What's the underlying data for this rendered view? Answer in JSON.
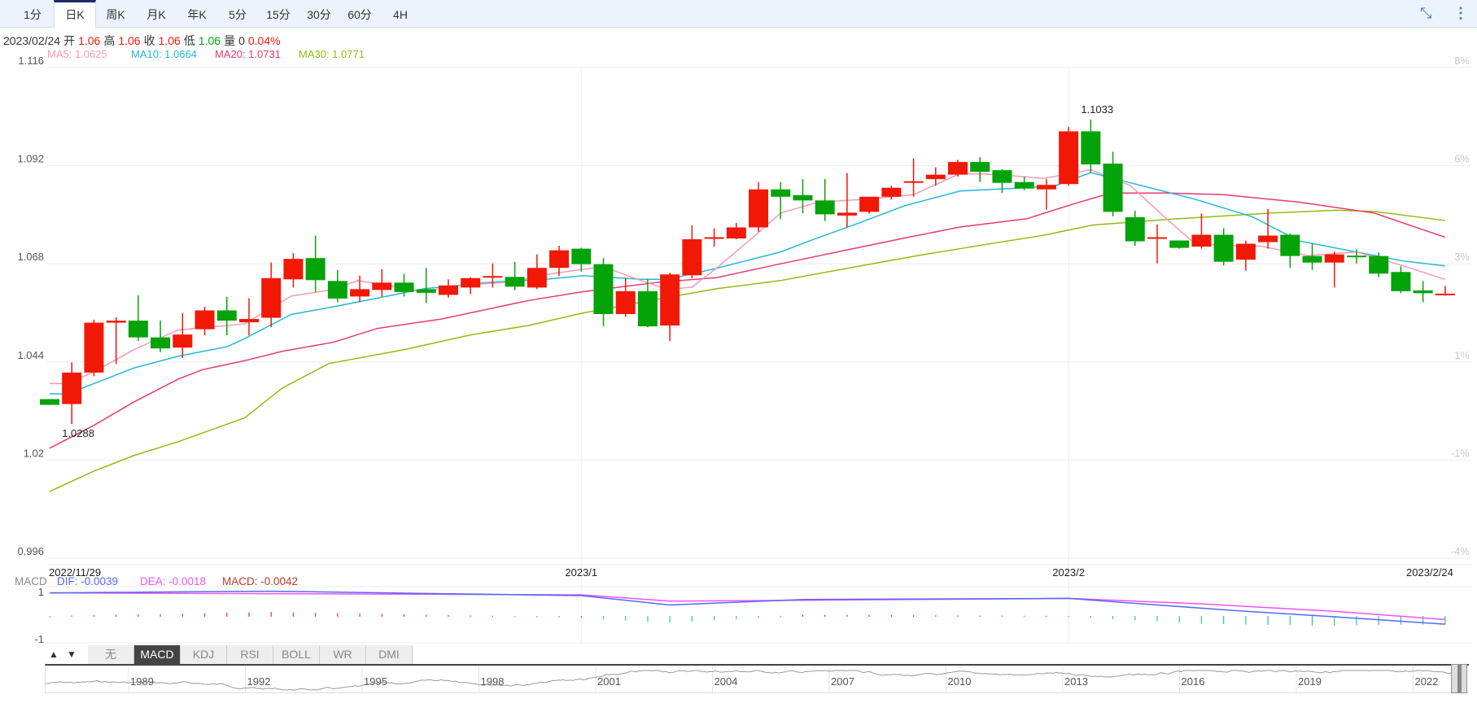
{
  "toolbar": {
    "tabs": [
      "1分",
      "日K",
      "周K",
      "月K",
      "年K",
      "5分",
      "15分",
      "30分",
      "60分",
      "4H"
    ],
    "active": 1,
    "icons": [
      "compress-icon",
      "more-vertical-icon"
    ]
  },
  "info": {
    "date": "2023/02/24",
    "open_label": "开",
    "open": "1.06",
    "high_label": "高",
    "high": "1.06",
    "close_label": "收",
    "close": "1.06",
    "low_label": "低",
    "low": "1.06",
    "vol_label": "量",
    "vol": "0",
    "change": "0.04%"
  },
  "ma_legend": [
    {
      "text": "MA5: 1.0625",
      "color": "#f59ab5"
    },
    {
      "text": "MA10: 1.0664",
      "color": "#23b8d9"
    },
    {
      "text": "MA20: 1.0731",
      "color": "#e83a6e"
    },
    {
      "text": "MA30: 1.0771",
      "color": "#93bb10"
    }
  ],
  "colors": {
    "up": "#f21806",
    "down": "#04a30a",
    "ma5": "#f59ab5",
    "ma10": "#23b8d9",
    "ma20": "#e83a6e",
    "ma30": "#93bb10",
    "dif": "#5468ff",
    "dea": "#ee55ee"
  },
  "chart_data": {
    "type": "candlestick",
    "ylim": [
      0.996,
      1.116
    ],
    "yticks": [
      "1.116",
      "1.092",
      "1.068",
      "1.044",
      "1.02",
      "0.996"
    ],
    "yticks_right": [
      "8%",
      "6%",
      "3%",
      "1%",
      "-1%",
      "-4%"
    ],
    "xlabels": [
      {
        "i": 0,
        "text": "2022/11/29"
      },
      {
        "i": 24,
        "text": "2023/1"
      },
      {
        "i": 46,
        "text": "2023/2"
      },
      {
        "i": 63,
        "text": "2023/2/24"
      }
    ],
    "annotations": [
      {
        "i": 47,
        "text": "1.1033",
        "pos": "above"
      },
      {
        "i": 1,
        "text": "1.0288",
        "pos": "below"
      }
    ],
    "ohlc": [
      [
        1.0349,
        1.0349,
        1.0335,
        1.0335
      ],
      [
        1.0337,
        1.0439,
        1.0288,
        1.0414
      ],
      [
        1.0414,
        1.0543,
        1.0405,
        1.0536
      ],
      [
        1.0536,
        1.0549,
        1.0435,
        1.0541
      ],
      [
        1.0541,
        1.0603,
        1.0491,
        1.05
      ],
      [
        1.05,
        1.0541,
        1.0464,
        1.0473
      ],
      [
        1.0475,
        1.0559,
        1.045,
        1.0507
      ],
      [
        1.052,
        1.0575,
        1.0505,
        1.0566
      ],
      [
        1.0566,
        1.0599,
        1.0505,
        1.0541
      ],
      [
        1.0537,
        1.0596,
        1.0505,
        1.0545
      ],
      [
        1.0548,
        1.0683,
        1.0525,
        1.0645
      ],
      [
        1.0642,
        1.0706,
        1.0622,
        1.0692
      ],
      [
        1.0694,
        1.0749,
        1.0611,
        1.064
      ],
      [
        1.0638,
        1.0665,
        1.0586,
        1.0595
      ],
      [
        1.06,
        1.0651,
        1.0586,
        1.0618
      ],
      [
        1.0616,
        1.0667,
        1.06,
        1.0634
      ],
      [
        1.0634,
        1.0656,
        1.06,
        1.0611
      ],
      [
        1.0618,
        1.067,
        1.0584,
        1.0609
      ],
      [
        1.0604,
        1.0642,
        1.0597,
        1.0627
      ],
      [
        1.0622,
        1.0647,
        1.0606,
        1.0645
      ],
      [
        1.0648,
        1.0681,
        1.0622,
        1.065
      ],
      [
        1.0648,
        1.0685,
        1.0615,
        1.0624
      ],
      [
        1.0622,
        1.0703,
        1.0618,
        1.067
      ],
      [
        1.067,
        1.0724,
        1.065,
        1.0713
      ],
      [
        1.0717,
        1.0719,
        1.0661,
        1.0679
      ],
      [
        1.0679,
        1.0694,
        1.0527,
        1.0557
      ],
      [
        1.0557,
        1.0645,
        1.055,
        1.0613
      ],
      [
        1.0613,
        1.0642,
        1.0525,
        1.0527
      ],
      [
        1.0529,
        1.0658,
        1.0491,
        1.0654
      ],
      [
        1.0652,
        1.0774,
        1.0645,
        1.074
      ],
      [
        1.0742,
        1.0767,
        1.0722,
        1.0745
      ],
      [
        1.0742,
        1.078,
        1.074,
        1.0769
      ],
      [
        1.0769,
        1.088,
        1.0758,
        1.0862
      ],
      [
        1.0862,
        1.088,
        1.0789,
        1.0844
      ],
      [
        1.0848,
        1.0887,
        1.0803,
        1.0835
      ],
      [
        1.0835,
        1.0887,
        1.0785,
        1.0801
      ],
      [
        1.0798,
        1.0902,
        1.0769,
        1.0805
      ],
      [
        1.0807,
        1.0844,
        1.0803,
        1.0844
      ],
      [
        1.0844,
        1.0871,
        1.0837,
        1.0866
      ],
      [
        1.088,
        1.0938,
        1.0844,
        1.0882
      ],
      [
        1.0887,
        1.0916,
        1.0871,
        1.0898
      ],
      [
        1.0898,
        1.0934,
        1.0893,
        1.0929
      ],
      [
        1.0929,
        1.0941,
        1.088,
        1.0905
      ],
      [
        1.0909,
        1.0911,
        1.0853,
        1.0878
      ],
      [
        1.088,
        1.0893,
        1.086,
        1.0864
      ],
      [
        1.0862,
        1.0887,
        1.0812,
        1.0873
      ],
      [
        1.0875,
        1.1015,
        1.0871,
        1.1004
      ],
      [
        1.1004,
        1.1033,
        1.0902,
        1.0923
      ],
      [
        1.0925,
        1.0954,
        1.0796,
        1.0807
      ],
      [
        1.0794,
        1.081,
        1.0724,
        1.0735
      ],
      [
        1.0742,
        1.0776,
        1.0681,
        1.0745
      ],
      [
        1.0737,
        1.0737,
        1.0717,
        1.0719
      ],
      [
        1.0722,
        1.0803,
        1.0717,
        1.0751
      ],
      [
        1.0751,
        1.0767,
        1.0676,
        1.0685
      ],
      [
        1.069,
        1.0737,
        1.0663,
        1.0729
      ],
      [
        1.0733,
        1.0814,
        1.0717,
        1.0749
      ],
      [
        1.0751,
        1.0754,
        1.067,
        1.0699
      ],
      [
        1.0699,
        1.0731,
        1.0665,
        1.0683
      ],
      [
        1.0683,
        1.071,
        1.0622,
        1.0703
      ],
      [
        1.07,
        1.0715,
        1.0681,
        1.0697
      ],
      [
        1.0699,
        1.0708,
        1.0647,
        1.0656
      ],
      [
        1.066,
        1.0674,
        1.0608,
        1.0613
      ],
      [
        1.0615,
        1.0638,
        1.0586,
        1.0608
      ],
      [
        1.0605,
        1.0626,
        1.0602,
        1.0607
      ]
    ],
    "ma": {
      "ma5": [
        [
          0,
          1.0387
        ],
        [
          0.8,
          1.0387
        ],
        [
          2,
          1.0416
        ],
        [
          3.8,
          1.047
        ],
        [
          5.8,
          1.0518
        ],
        [
          8.8,
          1.0533
        ],
        [
          10.9,
          1.0601
        ],
        [
          12.8,
          1.0617
        ],
        [
          13.9,
          1.0639
        ],
        [
          15.2,
          1.0628
        ],
        [
          16.9,
          1.0612
        ],
        [
          18.6,
          1.0628
        ],
        [
          20.7,
          1.0635
        ],
        [
          22.8,
          1.0657
        ],
        [
          25,
          1.0673
        ],
        [
          26.7,
          1.0639
        ],
        [
          27.9,
          1.0617
        ],
        [
          29,
          1.0623
        ],
        [
          30.1,
          1.0669
        ],
        [
          31.8,
          1.0747
        ],
        [
          33,
          1.0804
        ],
        [
          34.7,
          1.0831
        ],
        [
          36.9,
          1.0838
        ],
        [
          39,
          1.0849
        ],
        [
          41.1,
          1.0901
        ],
        [
          42.8,
          1.0898
        ],
        [
          44.9,
          1.0889
        ],
        [
          47,
          1.091
        ],
        [
          48.8,
          1.0871
        ],
        [
          50.5,
          1.0786
        ],
        [
          51.7,
          1.073
        ],
        [
          53,
          1.0725
        ],
        [
          54.7,
          1.0723
        ],
        [
          56.8,
          1.07
        ],
        [
          59,
          1.0709
        ],
        [
          61.1,
          1.0675
        ],
        [
          63,
          1.0642
        ]
      ],
      "ma10": [
        [
          0,
          1.0362
        ],
        [
          0.8,
          1.0362
        ],
        [
          2,
          1.0387
        ],
        [
          3.8,
          1.0425
        ],
        [
          5.8,
          1.0454
        ],
        [
          8,
          1.0477
        ],
        [
          8.8,
          1.0497
        ],
        [
          10.9,
          1.0556
        ],
        [
          13.1,
          1.0578
        ],
        [
          14.8,
          1.0596
        ],
        [
          16.9,
          1.0619
        ],
        [
          19.9,
          1.0635
        ],
        [
          22.4,
          1.0642
        ],
        [
          24.1,
          1.0651
        ],
        [
          26.7,
          1.0642
        ],
        [
          27.9,
          1.0642
        ],
        [
          30.1,
          1.0669
        ],
        [
          33,
          1.0709
        ],
        [
          34.3,
          1.0736
        ],
        [
          36.4,
          1.0777
        ],
        [
          38.6,
          1.0822
        ],
        [
          41.1,
          1.0858
        ],
        [
          43.7,
          1.0865
        ],
        [
          45.4,
          1.0871
        ],
        [
          47,
          1.0903
        ],
        [
          48.8,
          1.0878
        ],
        [
          51.7,
          1.0838
        ],
        [
          54.3,
          1.0795
        ],
        [
          56.4,
          1.0736
        ],
        [
          58.5,
          1.0714
        ],
        [
          61.1,
          1.0687
        ],
        [
          63,
          1.0675
        ]
      ],
      "ma20": [
        [
          0,
          1.0229
        ],
        [
          2,
          1.0285
        ],
        [
          3.8,
          1.0342
        ],
        [
          5.8,
          1.0398
        ],
        [
          6.9,
          1.0421
        ],
        [
          8.8,
          1.0443
        ],
        [
          10.5,
          1.0466
        ],
        [
          12.8,
          1.0488
        ],
        [
          14.8,
          1.0522
        ],
        [
          17.7,
          1.0545
        ],
        [
          21.6,
          1.059
        ],
        [
          24.1,
          1.0612
        ],
        [
          27.5,
          1.0635
        ],
        [
          30.1,
          1.0646
        ],
        [
          33,
          1.068
        ],
        [
          36,
          1.0714
        ],
        [
          38.6,
          1.0743
        ],
        [
          41.1,
          1.077
        ],
        [
          44.1,
          1.079
        ],
        [
          46.2,
          1.0826
        ],
        [
          47.9,
          1.0853
        ],
        [
          50.5,
          1.0853
        ],
        [
          53,
          1.0849
        ],
        [
          56.4,
          1.0831
        ],
        [
          59.8,
          1.0804
        ],
        [
          63,
          1.0745
        ]
      ],
      "ma30": [
        [
          0,
          1.0123
        ],
        [
          2,
          1.0173
        ],
        [
          3.8,
          1.0211
        ],
        [
          5.8,
          1.0245
        ],
        [
          8.8,
          1.0303
        ],
        [
          10.5,
          1.0376
        ],
        [
          12.6,
          1.0436
        ],
        [
          16,
          1.047
        ],
        [
          19,
          1.0506
        ],
        [
          21.6,
          1.0529
        ],
        [
          24.1,
          1.056
        ],
        [
          27.1,
          1.059
        ],
        [
          30.1,
          1.0619
        ],
        [
          33,
          1.0639
        ],
        [
          36,
          1.0669
        ],
        [
          39.4,
          1.0702
        ],
        [
          42.8,
          1.0732
        ],
        [
          44.9,
          1.075
        ],
        [
          47.1,
          1.0775
        ],
        [
          50.9,
          1.079
        ],
        [
          55.1,
          1.0804
        ],
        [
          58.1,
          1.0811
        ],
        [
          59.8,
          1.0808
        ],
        [
          63,
          1.0786
        ]
      ]
    }
  },
  "macd": {
    "label": "MACD",
    "dif_text": "DIF: -0.0039",
    "dea_text": "DEA: -0.0018",
    "macd_text": "MACD: -0.0042",
    "yticks": [
      "1",
      "-1"
    ],
    "dif": [
      [
        0,
        1.09
      ],
      [
        10,
        1.17
      ],
      [
        24,
        0.96
      ],
      [
        28,
        0.52
      ],
      [
        34,
        0.78
      ],
      [
        46,
        0.83
      ],
      [
        50,
        0.52
      ],
      [
        54,
        0.22
      ],
      [
        58,
        -0.04
      ],
      [
        63,
        -0.39
      ]
    ],
    "dea": [
      [
        0,
        1.09
      ],
      [
        24,
        1.0
      ],
      [
        28,
        0.7
      ],
      [
        34,
        0.74
      ],
      [
        46,
        0.83
      ],
      [
        52,
        0.57
      ],
      [
        58,
        0.22
      ],
      [
        63,
        -0.17
      ]
    ]
  },
  "indicators": {
    "up": "▲",
    "down": "▼",
    "tabs": [
      "无",
      "MACD",
      "KDJ",
      "RSI",
      "BOLL",
      "WR",
      "DMI"
    ],
    "active": 1
  },
  "navigator": {
    "years": [
      "1989",
      "1992",
      "1995",
      "1998",
      "2001",
      "2004",
      "2007",
      "2010",
      "2013",
      "2016",
      "2019",
      "2022"
    ]
  }
}
